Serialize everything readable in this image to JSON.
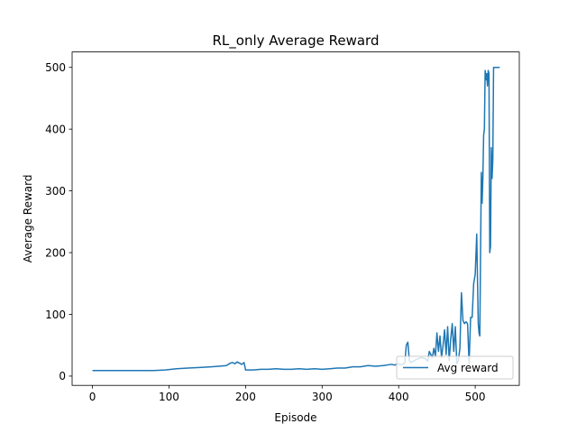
{
  "chart_data": {
    "type": "line",
    "title": "RL_only Average Reward",
    "xlabel": "Episode",
    "ylabel": "Average Reward",
    "xlim": [
      -26.6,
      557.6
    ],
    "ylim": [
      -15,
      525
    ],
    "xticks": [
      0,
      100,
      200,
      300,
      400,
      500
    ],
    "yticks": [
      0,
      100,
      200,
      300,
      400,
      500
    ],
    "grid": false,
    "legend_position": "lower-right",
    "series": [
      {
        "name": "Avg reward",
        "color": "#1f77b4",
        "x": [
          0,
          20,
          40,
          60,
          80,
          95,
          110,
          125,
          140,
          155,
          165,
          175,
          180,
          183,
          186,
          189,
          192,
          195,
          198,
          200,
          210,
          220,
          230,
          240,
          250,
          260,
          270,
          280,
          290,
          300,
          310,
          320,
          330,
          340,
          350,
          360,
          370,
          380,
          390,
          395,
          400,
          403,
          406,
          408,
          410,
          412,
          414,
          416,
          420,
          425,
          430,
          435,
          438,
          440,
          442,
          444,
          446,
          448,
          450,
          452,
          454,
          456,
          458,
          460,
          462,
          464,
          466,
          468,
          470,
          472,
          474,
          476,
          478,
          480,
          482,
          484,
          486,
          488,
          490,
          492,
          494,
          496,
          498,
          500,
          502,
          504,
          505,
          506,
          507,
          508,
          509,
          510,
          511,
          512,
          513,
          514,
          515,
          516,
          517,
          518,
          519,
          520,
          521,
          522,
          523,
          524,
          525,
          526,
          527,
          528,
          529,
          530,
          531,
          532
        ],
        "y": [
          9,
          9,
          9,
          9,
          9,
          10,
          12,
          13,
          14,
          15,
          16,
          17,
          21,
          22,
          20,
          23,
          21,
          19,
          22,
          10,
          10,
          11,
          11,
          12,
          11,
          11,
          12,
          11,
          12,
          11,
          12,
          13,
          13,
          15,
          15,
          17,
          16,
          17,
          19,
          18,
          20,
          18,
          20,
          22,
          50,
          55,
          25,
          22,
          25,
          28,
          30,
          28,
          24,
          40,
          35,
          30,
          45,
          32,
          70,
          40,
          65,
          30,
          50,
          75,
          35,
          80,
          25,
          60,
          85,
          40,
          80,
          20,
          25,
          45,
          135,
          90,
          85,
          88,
          85,
          20,
          95,
          95,
          150,
          165,
          230,
          85,
          70,
          65,
          200,
          330,
          280,
          320,
          390,
          400,
          495,
          480,
          490,
          470,
          495,
          490,
          200,
          210,
          370,
          320,
          350,
          500,
          500,
          500,
          500,
          500,
          500,
          500,
          500,
          500
        ]
      }
    ]
  }
}
